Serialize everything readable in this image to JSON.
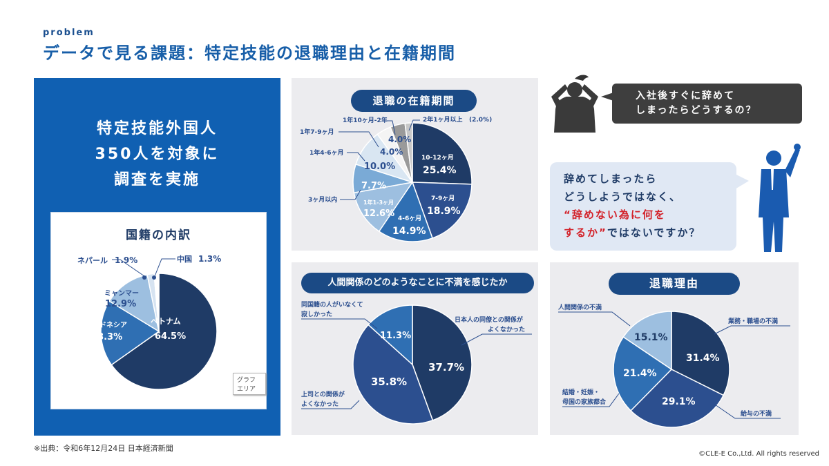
{
  "header": {
    "kicker": "problem",
    "title": "データで見る課題：特定技能の退職理由と在籍期間"
  },
  "survey": {
    "line1": "特定技能外国人",
    "line2": "350人を対象に",
    "line3": "調査を実施"
  },
  "graph_area_label": "グラフ エリア",
  "speech": {
    "worry_line1": "入社後すぐに辞めて",
    "worry_line2": "しまったらどうするの？",
    "answer_line1": "辞めてしまったら",
    "answer_line2": "どうしようではなく、",
    "answer_line3": "“辞めない為に何を",
    "answer_line4_red": "するか”",
    "answer_line4_rest": "ではないですか？"
  },
  "footer": {
    "source": "※出典：令和6年12月24日 日本経済新聞",
    "copyright": "©CLE-E Co.,Ltd. All rights reserved"
  },
  "colors": {
    "navy": "#1f3b66",
    "blue": "#2e5a9a",
    "mid_blue": "#2f6fb3",
    "light_blue": "#9dbfe0",
    "accent_blue": "#1060b2",
    "red": "#d3222a"
  },
  "chart_data": [
    {
      "id": "nationality",
      "type": "pie",
      "title": "国籍の内訳",
      "labels": [
        "ベトナム",
        "インドネシア",
        "ミャンマー",
        "ネパール",
        "中国"
      ],
      "values": [
        64.5,
        18.3,
        12.9,
        1.9,
        1.3
      ],
      "value_labels": [
        "64.5%",
        "18.3%",
        "12.9%",
        "1.9%",
        "1.3%"
      ],
      "colors": [
        "#1f3b66",
        "#2f6fb3",
        "#9dbfe0",
        "#d6e3f1",
        "#ffffff"
      ]
    },
    {
      "id": "tenure",
      "type": "pie",
      "title": "退職の在籍期間",
      "labels": [
        "10-12ヶ月",
        "7-9ヶ月",
        "4-6ヶ月",
        "1年1-3ヶ月",
        "3ヶ月以内",
        "1年4-6ヶ月",
        "1年7-9ヶ月",
        "1年10ヶ月-2年",
        "2年1ヶ月以上"
      ],
      "values": [
        25.4,
        18.9,
        14.9,
        12.6,
        7.7,
        10.0,
        4.0,
        4.0,
        2.0
      ],
      "value_labels": [
        "25.4%",
        "18.9%",
        "14.9%",
        "12.6%",
        "7.7%",
        "10.0%",
        "4.0%",
        "4.0%",
        "(2.0%)"
      ],
      "colors": [
        "#1f3b66",
        "#2c4f8f",
        "#2f6fb3",
        "#9dbfe0",
        "#7aaad6",
        "#d9e6f2",
        "#f4f4f4",
        "#9a9a9a",
        "#c8c8c8"
      ]
    },
    {
      "id": "relationships",
      "type": "pie",
      "title": "人間関係のどのようなことに不満を感じたか",
      "labels": [
        "日本人の同僚との関係がよくなかった",
        "上司との関係がよくなかった",
        "同国籍の人がいなくて寂しかった"
      ],
      "values": [
        37.7,
        35.8,
        11.3
      ],
      "value_labels": [
        "37.7%",
        "35.8%",
        "11.3%"
      ],
      "colors": [
        "#1f3b66",
        "#2c4f8f",
        "#2f6fb3"
      ]
    },
    {
      "id": "reasons",
      "type": "pie",
      "title": "退職理由",
      "labels": [
        "業務・職場の不満",
        "給与の不満",
        "結婚・妊娠・母国の家族都合",
        "人間関係の不満"
      ],
      "values": [
        31.4,
        29.1,
        21.4,
        15.1
      ],
      "value_labels": [
        "31.4%",
        "29.1%",
        "21.4%",
        "15.1%"
      ],
      "colors": [
        "#1f3b66",
        "#2c4f8f",
        "#2f6fb3",
        "#9dbfe0"
      ]
    }
  ]
}
